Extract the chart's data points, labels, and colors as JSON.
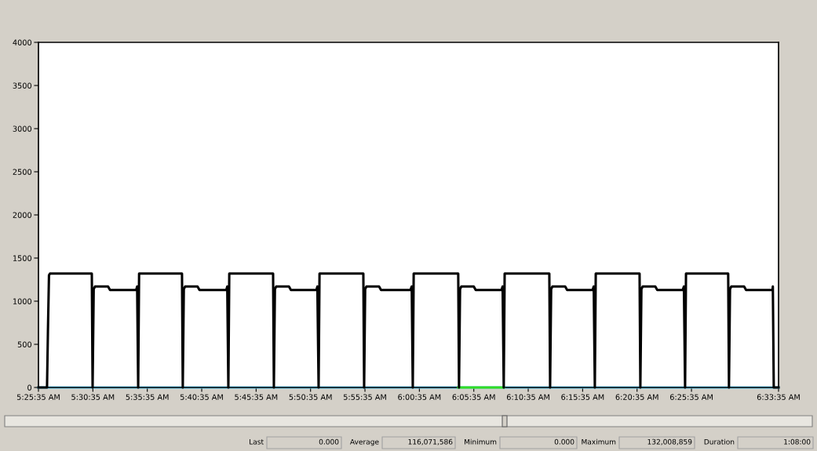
{
  "chart_data": {
    "type": "line",
    "series": [
      {
        "color": "#56c8f0",
        "x": [
          5.4264,
          6.5597
        ],
        "values": [
          0,
          0
        ]
      },
      {
        "color": "#33dd22",
        "x": [
          6.0692,
          6.1389
        ],
        "values": [
          0,
          0
        ]
      },
      {
        "color": "#000000",
        "x": [
          5.4264,
          5.4395,
          5.4409,
          5.4425,
          5.444,
          5.5081,
          5.5093,
          5.511,
          5.513,
          5.533,
          5.536,
          5.576,
          5.5775,
          5.5791,
          5.5805,
          5.6462,
          5.6474,
          5.649,
          5.651,
          5.67,
          5.673,
          5.714,
          5.7155,
          5.7172,
          5.7186,
          5.7857,
          5.7869,
          5.7885,
          5.7905,
          5.81,
          5.813,
          5.852,
          5.8535,
          5.8554,
          5.8568,
          5.9239,
          5.9251,
          5.9267,
          5.9287,
          5.948,
          5.951,
          5.996,
          5.998,
          5.9996,
          6.001,
          6.0692,
          6.0704,
          6.072,
          6.074,
          6.093,
          6.096,
          6.1355,
          6.1372,
          6.1389,
          6.1403,
          6.2087,
          6.2099,
          6.2115,
          6.2135,
          6.233,
          6.236,
          6.275,
          6.2767,
          6.2784,
          6.2798,
          6.3469,
          6.3481,
          6.3497,
          6.3517,
          6.371,
          6.374,
          6.413,
          6.4148,
          6.4166,
          6.418,
          6.4826,
          6.4838,
          6.4854,
          6.4874,
          6.507,
          6.51,
          6.5505,
          6.551,
          6.5524,
          6.5597
        ],
        "values": [
          0,
          0,
          650,
          1300,
          1320,
          1320,
          0,
          1140,
          1170,
          1170,
          1130,
          1130,
          1170,
          0,
          1320,
          1320,
          0,
          1140,
          1170,
          1170,
          1130,
          1130,
          1170,
          0,
          1320,
          1320,
          0,
          1140,
          1170,
          1170,
          1130,
          1130,
          1170,
          0,
          1320,
          1320,
          0,
          1140,
          1170,
          1170,
          1130,
          1130,
          1170,
          0,
          1320,
          1320,
          0,
          1140,
          1170,
          1170,
          1130,
          1130,
          1170,
          0,
          1320,
          1320,
          0,
          1140,
          1170,
          1170,
          1130,
          1130,
          1170,
          0,
          1320,
          1320,
          0,
          1140,
          1170,
          1170,
          1130,
          1130,
          1170,
          0,
          1320,
          1320,
          0,
          1140,
          1170,
          1170,
          1130,
          1130,
          1170,
          0,
          0
        ]
      }
    ],
    "xlim": [
      5.42639,
      6.55972
    ],
    "xticks": [
      {
        "value": 5.42639,
        "label": "5:25:35 AM"
      },
      {
        "value": 5.50972,
        "label": "5:30:35 AM"
      },
      {
        "value": 5.59306,
        "label": "5:35:35 AM"
      },
      {
        "value": 5.67639,
        "label": "5:40:35 AM"
      },
      {
        "value": 5.75972,
        "label": "5:45:35 AM"
      },
      {
        "value": 5.84306,
        "label": "5:50:35 AM"
      },
      {
        "value": 5.92639,
        "label": "5:55:35 AM"
      },
      {
        "value": 6.00972,
        "label": "6:00:35 AM"
      },
      {
        "value": 6.09306,
        "label": "6:05:35 AM"
      },
      {
        "value": 6.17639,
        "label": "6:10:35 AM"
      },
      {
        "value": 6.25972,
        "label": "6:15:35 AM"
      },
      {
        "value": 6.34306,
        "label": "6:20:35 AM"
      },
      {
        "value": 6.42639,
        "label": "6:25:35 AM"
      },
      {
        "value": 6.55972,
        "label": "6:33:35 AM"
      }
    ],
    "ylim": [
      0,
      4000
    ],
    "yticks": [
      0,
      500,
      1000,
      1500,
      2000,
      2500,
      3000,
      3500,
      4000
    ],
    "grid": false,
    "marker": "none",
    "line_style": "solid",
    "annotations": [
      "Last",
      "0.000",
      "Average",
      "116,071,586",
      "Minimum",
      "0.000",
      "Maximum",
      "132,008,859",
      "Duration",
      "1:08:00"
    ]
  }
}
